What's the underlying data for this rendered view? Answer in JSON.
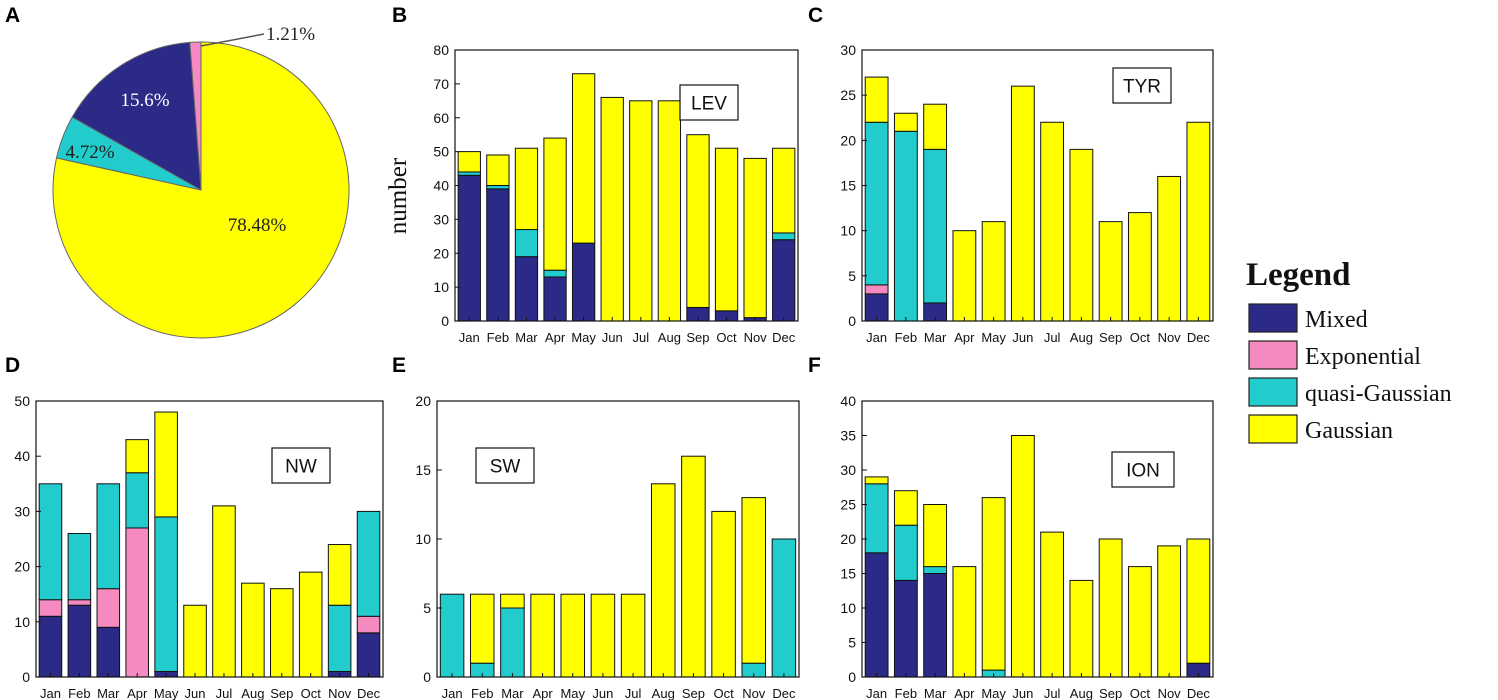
{
  "colors": {
    "Mixed": "#2b2a86",
    "Exponential": "#f58ac0",
    "quasi-Gaussian": "#22cccc",
    "Gaussian": "#ffff00"
  },
  "months": [
    "Jan",
    "Feb",
    "Mar",
    "Apr",
    "May",
    "Jun",
    "Jul",
    "Aug",
    "Sep",
    "Oct",
    "Nov",
    "Dec"
  ],
  "legend": {
    "title": "Legend",
    "items": [
      "Mixed",
      "Exponential",
      "quasi-Gaussian",
      "Gaussian"
    ]
  },
  "ylabel": "number",
  "chart_data": [
    {
      "type": "pie",
      "panel": "A",
      "slices": [
        {
          "name": "Exponential",
          "value": 1.21,
          "label": "1.21%"
        },
        {
          "name": "Mixed",
          "value": 15.6,
          "label": "15.6%"
        },
        {
          "name": "quasi-Gaussian",
          "value": 4.72,
          "label": "4.72%"
        },
        {
          "name": "Gaussian",
          "value": 78.48,
          "label": "78.48%"
        }
      ]
    },
    {
      "type": "bar",
      "stacked": true,
      "panel": "B",
      "region": "LEV",
      "ylim": [
        0,
        80
      ],
      "yticks": [
        0,
        10,
        20,
        30,
        40,
        50,
        60,
        70,
        80
      ],
      "ylabel": "number",
      "series": [
        {
          "name": "Mixed",
          "values": [
            43,
            39,
            19,
            13,
            23,
            0,
            0,
            0,
            4,
            3,
            1,
            24
          ]
        },
        {
          "name": "Exponential",
          "values": [
            0,
            0,
            0,
            0,
            0,
            0,
            0,
            0,
            0,
            0,
            0,
            0
          ]
        },
        {
          "name": "quasi-Gaussian",
          "values": [
            1,
            1,
            8,
            2,
            0,
            0,
            0,
            0,
            0,
            0,
            0,
            2
          ]
        },
        {
          "name": "Gaussian",
          "values": [
            6,
            9,
            24,
            39,
            50,
            66,
            65,
            65,
            51,
            48,
            47,
            25
          ]
        }
      ]
    },
    {
      "type": "bar",
      "stacked": true,
      "panel": "C",
      "region": "TYR",
      "ylim": [
        0,
        30
      ],
      "yticks": [
        0,
        5,
        10,
        15,
        20,
        25,
        30
      ],
      "series": [
        {
          "name": "Mixed",
          "values": [
            3,
            0,
            2,
            0,
            0,
            0,
            0,
            0,
            0,
            0,
            0,
            0
          ]
        },
        {
          "name": "Exponential",
          "values": [
            1,
            0,
            0,
            0,
            0,
            0,
            0,
            0,
            0,
            0,
            0,
            0
          ]
        },
        {
          "name": "quasi-Gaussian",
          "values": [
            18,
            21,
            17,
            0,
            0,
            0,
            0,
            0,
            0,
            0,
            0,
            0
          ]
        },
        {
          "name": "Gaussian",
          "values": [
            5,
            2,
            5,
            10,
            11,
            26,
            22,
            19,
            11,
            12,
            16,
            22
          ]
        }
      ]
    },
    {
      "type": "bar",
      "stacked": true,
      "panel": "D",
      "region": "NW",
      "ylim": [
        0,
        50
      ],
      "yticks": [
        0,
        10,
        20,
        30,
        40,
        50
      ],
      "series": [
        {
          "name": "Mixed",
          "values": [
            11,
            13,
            9,
            0,
            1,
            0,
            0,
            0,
            0,
            0,
            1,
            8
          ]
        },
        {
          "name": "Exponential",
          "values": [
            3,
            1,
            7,
            27,
            0,
            0,
            0,
            0,
            0,
            0,
            0,
            3
          ]
        },
        {
          "name": "quasi-Gaussian",
          "values": [
            21,
            12,
            19,
            10,
            28,
            0,
            0,
            0,
            0,
            0,
            12,
            19
          ]
        },
        {
          "name": "Gaussian",
          "values": [
            0,
            0,
            0,
            6,
            19,
            13,
            31,
            17,
            16,
            19,
            11,
            0
          ]
        }
      ]
    },
    {
      "type": "bar",
      "stacked": true,
      "panel": "E",
      "region": "SW",
      "ylim": [
        0,
        20
      ],
      "yticks": [
        0,
        5,
        10,
        15,
        20
      ],
      "series": [
        {
          "name": "Mixed",
          "values": [
            0,
            0,
            0,
            0,
            0,
            0,
            0,
            0,
            0,
            0,
            0,
            0
          ]
        },
        {
          "name": "Exponential",
          "values": [
            0,
            0,
            0,
            0,
            0,
            0,
            0,
            0,
            0,
            0,
            0,
            0
          ]
        },
        {
          "name": "quasi-Gaussian",
          "values": [
            6,
            1,
            5,
            0,
            0,
            0,
            0,
            0,
            0,
            0,
            1,
            10
          ]
        },
        {
          "name": "Gaussian",
          "values": [
            0,
            5,
            1,
            6,
            6,
            6,
            6,
            14,
            16,
            12,
            12,
            0
          ]
        }
      ]
    },
    {
      "type": "bar",
      "stacked": true,
      "panel": "F",
      "region": "ION",
      "ylim": [
        0,
        40
      ],
      "yticks": [
        0,
        5,
        10,
        15,
        20,
        25,
        30,
        35,
        40
      ],
      "series": [
        {
          "name": "Mixed",
          "values": [
            18,
            14,
            15,
            0,
            0,
            0,
            0,
            0,
            0,
            0,
            0,
            2
          ]
        },
        {
          "name": "Exponential",
          "values": [
            0,
            0,
            0,
            0,
            0,
            0,
            0,
            0,
            0,
            0,
            0,
            0
          ]
        },
        {
          "name": "quasi-Gaussian",
          "values": [
            10,
            8,
            1,
            0,
            1,
            0,
            0,
            0,
            0,
            0,
            0,
            0
          ]
        },
        {
          "name": "Gaussian",
          "values": [
            1,
            5,
            9,
            16,
            25,
            35,
            21,
            14,
            20,
            16,
            19,
            18
          ]
        }
      ]
    }
  ]
}
